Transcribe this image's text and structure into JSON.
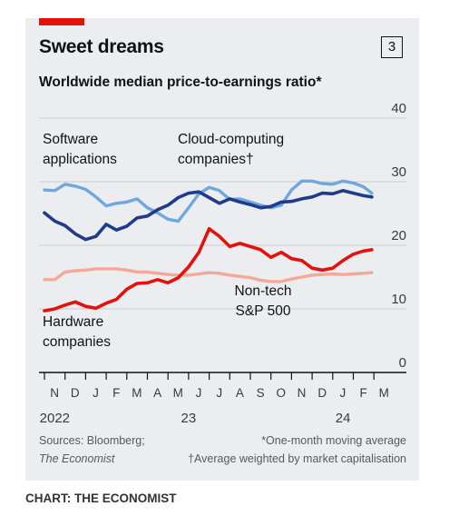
{
  "header": {
    "title": "Sweet dreams",
    "chart_number": "3",
    "subtitle": "Worldwide median price-to-earnings ratio*"
  },
  "footer": {
    "sources_line1": "Sources: Bloomberg;",
    "sources_line2": "The Economist",
    "note1": "*One-month moving average",
    "note2": "†Average weighted by market capitalisation",
    "credit": "CHART: THE ECONOMIST"
  },
  "colors": {
    "software": "#6fa8dc",
    "cloud": "#1f3c8a",
    "hardware": "#e3120b",
    "nontech": "#f4a896",
    "accent": "#e3120b",
    "panel": "#ebedf0"
  },
  "chart_data": {
    "type": "line",
    "title": "Sweet dreams",
    "subtitle": "Worldwide median price-to-earnings ratio*",
    "ylim": [
      0,
      40
    ],
    "yticks": [
      "40",
      "30",
      "20",
      "10",
      "0"
    ],
    "xlim": [
      0,
      16
    ],
    "month_labels": [
      "N",
      "D",
      "J",
      "F",
      "M",
      "A",
      "M",
      "J",
      "J",
      "A",
      "S",
      "O",
      "N",
      "D",
      "J",
      "F",
      "M"
    ],
    "year_labels": [
      {
        "text": "2022",
        "x": 0.5
      },
      {
        "text": "23",
        "x": 7
      },
      {
        "text": "24",
        "x": 14.5
      }
    ],
    "grid": true,
    "series": [
      {
        "name": "Software applications",
        "label_lines": [
          "Software",
          "applications"
        ],
        "color_key": "software",
        "points": [
          [
            0,
            28.7
          ],
          [
            0.5,
            28.6
          ],
          [
            1,
            29.6
          ],
          [
            1.5,
            29.3
          ],
          [
            2,
            28.8
          ],
          [
            2.5,
            27.6
          ],
          [
            3,
            26.2
          ],
          [
            3.5,
            26.6
          ],
          [
            4,
            26.8
          ],
          [
            4.5,
            27.3
          ],
          [
            5,
            25.9
          ],
          [
            5.5,
            25.1
          ],
          [
            6,
            24.1
          ],
          [
            6.5,
            23.8
          ],
          [
            7,
            25.9
          ],
          [
            7.5,
            28.1
          ],
          [
            8,
            29.1
          ],
          [
            8.5,
            28.6
          ],
          [
            9,
            27.2
          ],
          [
            9.5,
            27.3
          ],
          [
            10,
            26.8
          ],
          [
            10.5,
            26.3
          ],
          [
            11,
            25.9
          ],
          [
            11.5,
            26.3
          ],
          [
            12,
            28.7
          ],
          [
            12.5,
            30.1
          ],
          [
            13,
            30.1
          ],
          [
            13.5,
            29.7
          ],
          [
            14,
            29.6
          ],
          [
            14.5,
            30.1
          ],
          [
            15,
            29.8
          ],
          [
            15.5,
            29.2
          ],
          [
            15.9,
            28.2
          ]
        ]
      },
      {
        "name": "Cloud-computing companies†",
        "label_lines": [
          "Cloud-computing",
          "companies†"
        ],
        "color_key": "cloud",
        "points": [
          [
            0,
            25.1
          ],
          [
            0.5,
            23.8
          ],
          [
            1,
            23.1
          ],
          [
            1.5,
            21.8
          ],
          [
            2,
            20.9
          ],
          [
            2.5,
            21.4
          ],
          [
            3,
            23.3
          ],
          [
            3.5,
            22.4
          ],
          [
            4,
            23.0
          ],
          [
            4.5,
            24.3
          ],
          [
            5,
            24.6
          ],
          [
            5.5,
            25.6
          ],
          [
            6,
            26.3
          ],
          [
            6.5,
            27.5
          ],
          [
            7,
            28.2
          ],
          [
            7.5,
            28.4
          ],
          [
            8,
            27.5
          ],
          [
            8.5,
            26.6
          ],
          [
            9,
            27.3
          ],
          [
            9.5,
            26.8
          ],
          [
            10,
            26.4
          ],
          [
            10.5,
            25.9
          ],
          [
            11,
            26.1
          ],
          [
            11.5,
            26.8
          ],
          [
            12,
            26.9
          ],
          [
            12.5,
            27.3
          ],
          [
            13,
            27.6
          ],
          [
            13.5,
            28.2
          ],
          [
            14,
            28.1
          ],
          [
            14.5,
            28.6
          ],
          [
            15,
            28.2
          ],
          [
            15.5,
            27.8
          ],
          [
            15.9,
            27.6
          ]
        ]
      },
      {
        "name": "Hardware companies",
        "label_lines": [
          "Hardware",
          "companies"
        ],
        "color_key": "hardware",
        "points": [
          [
            0,
            9.7
          ],
          [
            0.5,
            10.0
          ],
          [
            1,
            10.6
          ],
          [
            1.5,
            11.1
          ],
          [
            2,
            10.4
          ],
          [
            2.5,
            10.1
          ],
          [
            3,
            10.9
          ],
          [
            3.5,
            11.5
          ],
          [
            4,
            13.1
          ],
          [
            4.5,
            14.0
          ],
          [
            5,
            14.1
          ],
          [
            5.5,
            14.6
          ],
          [
            6,
            14.1
          ],
          [
            6.5,
            14.9
          ],
          [
            7,
            16.6
          ],
          [
            7.5,
            18.9
          ],
          [
            8,
            22.6
          ],
          [
            8.5,
            21.4
          ],
          [
            9,
            19.8
          ],
          [
            9.5,
            20.3
          ],
          [
            10,
            19.8
          ],
          [
            10.5,
            19.3
          ],
          [
            11,
            18.1
          ],
          [
            11.5,
            18.9
          ],
          [
            12,
            17.9
          ],
          [
            12.5,
            17.6
          ],
          [
            13,
            16.4
          ],
          [
            13.5,
            16.1
          ],
          [
            14,
            16.4
          ],
          [
            14.5,
            17.6
          ],
          [
            15,
            18.6
          ],
          [
            15.5,
            19.1
          ],
          [
            15.9,
            19.3
          ]
        ]
      },
      {
        "name": "Non-tech S&P 500",
        "label_lines": [
          "Non-tech",
          "S&P 500"
        ],
        "color_key": "nontech",
        "points": [
          [
            0,
            14.6
          ],
          [
            0.5,
            14.6
          ],
          [
            1,
            15.8
          ],
          [
            1.5,
            16.0
          ],
          [
            2,
            16.1
          ],
          [
            2.5,
            16.3
          ],
          [
            3,
            16.3
          ],
          [
            3.5,
            16.3
          ],
          [
            4,
            16.1
          ],
          [
            4.5,
            15.8
          ],
          [
            5,
            15.8
          ],
          [
            5.5,
            15.6
          ],
          [
            6,
            15.4
          ],
          [
            6.5,
            15.3
          ],
          [
            7,
            15.3
          ],
          [
            7.5,
            15.5
          ],
          [
            8,
            15.7
          ],
          [
            8.5,
            15.6
          ],
          [
            9,
            15.3
          ],
          [
            9.5,
            15.1
          ],
          [
            10,
            14.9
          ],
          [
            10.5,
            14.5
          ],
          [
            11,
            14.3
          ],
          [
            11.5,
            14.3
          ],
          [
            12,
            14.7
          ],
          [
            12.5,
            15.0
          ],
          [
            13,
            15.3
          ],
          [
            13.5,
            15.4
          ],
          [
            14,
            15.5
          ],
          [
            14.5,
            15.4
          ],
          [
            15,
            15.5
          ],
          [
            15.5,
            15.6
          ],
          [
            15.9,
            15.7
          ]
        ]
      }
    ]
  }
}
